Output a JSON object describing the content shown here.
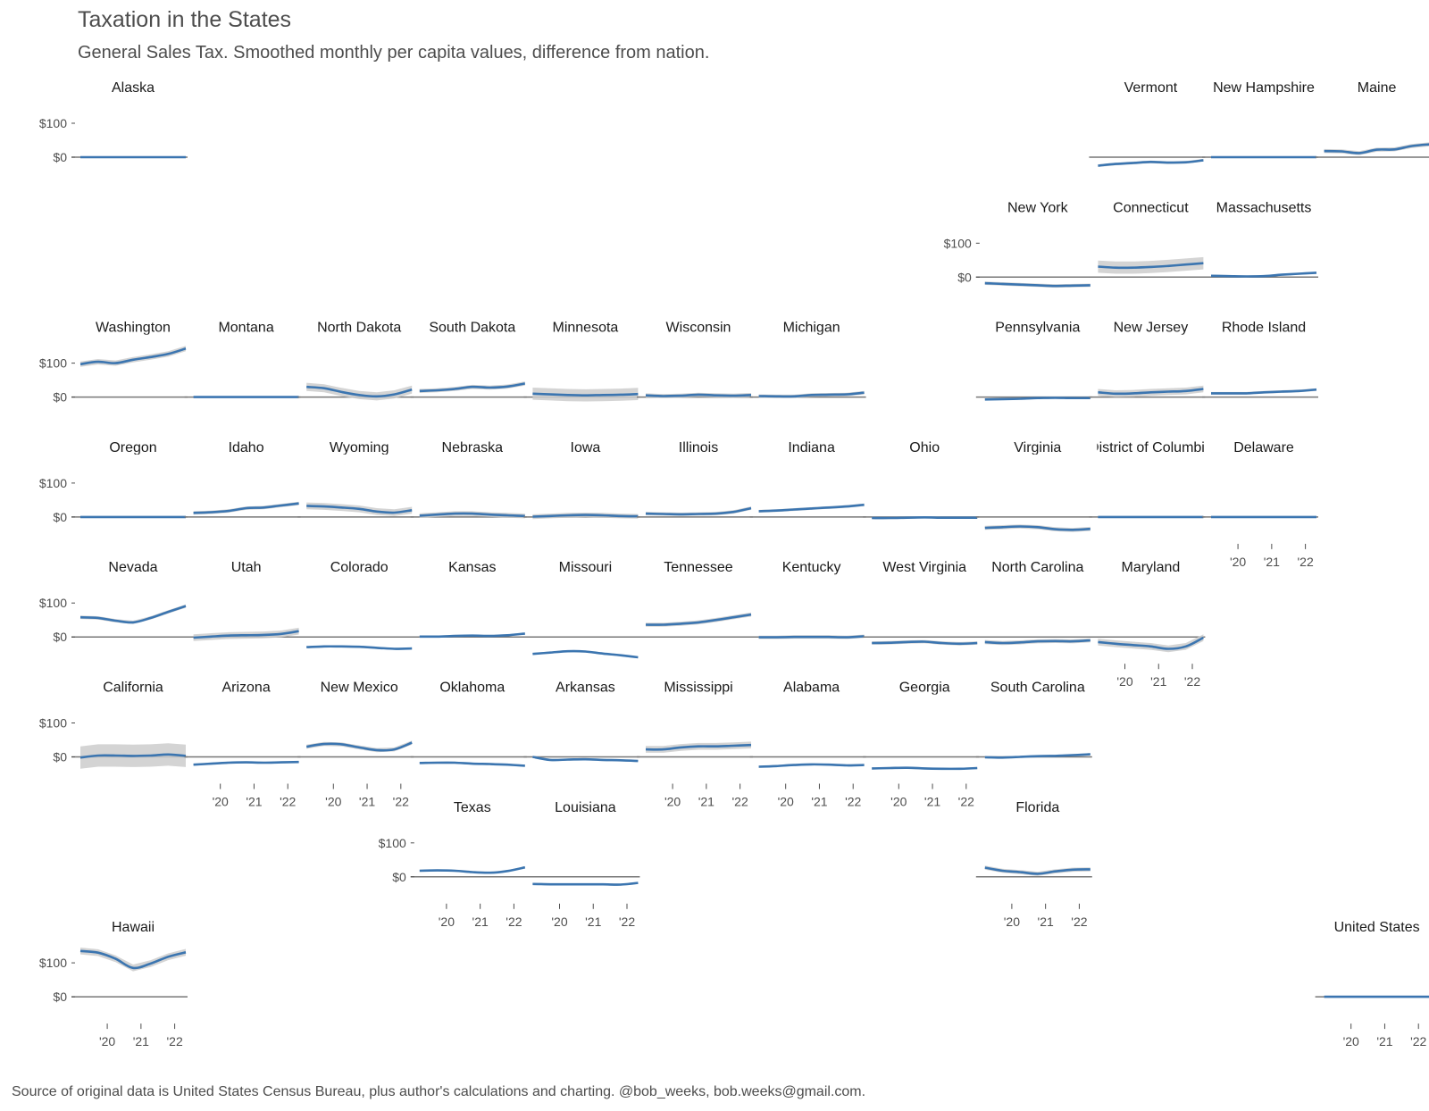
{
  "title": "Taxation in the States",
  "subtitle": "General Sales Tax. Smoothed monthly per capita values, difference from nation.",
  "caption": "Source of original data is United States Census Bureau, plus author's calculations and charting. @bob_weeks, bob.weeks@gmail.com.",
  "colors": {
    "line": "#3b75b0",
    "band": "#cccccc",
    "zero": "#777777",
    "text": "#4d4d4d"
  },
  "chart_data": {
    "type": "line",
    "layout": "state-grid facets",
    "x_ticks": [
      "'20",
      "'21",
      "'22"
    ],
    "y_ticks": [
      "$100",
      "$0"
    ],
    "x_unit": "year",
    "y_unit": "dollars per capita, difference from nation",
    "panels": [
      {
        "name": "Alaska",
        "row": 0,
        "col": 0,
        "values": [
          0,
          0,
          0,
          0,
          0,
          0,
          0
        ],
        "band": 0
      },
      {
        "name": "Vermont",
        "row": 0,
        "col": 9,
        "values": [
          -25,
          -20,
          -17,
          -14,
          -16,
          -15,
          -9
        ],
        "band": 4
      },
      {
        "name": "New Hampshire",
        "row": 0,
        "col": 10,
        "values": [
          0,
          0,
          0,
          0,
          0,
          0,
          0
        ],
        "band": 0
      },
      {
        "name": "Maine",
        "row": 0,
        "col": 11,
        "values": [
          18,
          17,
          12,
          22,
          23,
          33,
          38
        ],
        "band": 6
      },
      {
        "name": "New York",
        "row": 1,
        "col": 8,
        "values": [
          -18,
          -20,
          -22,
          -24,
          -26,
          -25,
          -24
        ],
        "band": 5
      },
      {
        "name": "Connecticut",
        "row": 1,
        "col": 9,
        "values": [
          31,
          28,
          28,
          30,
          33,
          37,
          41
        ],
        "band": 18
      },
      {
        "name": "Massachusetts",
        "row": 1,
        "col": 10,
        "values": [
          4,
          3,
          2,
          3,
          7,
          10,
          13
        ],
        "band": 3
      },
      {
        "name": "Washington",
        "row": 2,
        "col": 0,
        "values": [
          97,
          104,
          100,
          110,
          118,
          127,
          143
        ],
        "band": 8
      },
      {
        "name": "Montana",
        "row": 2,
        "col": 1,
        "values": [
          0,
          0,
          0,
          0,
          0,
          0,
          0
        ],
        "band": 0
      },
      {
        "name": "North Dakota",
        "row": 2,
        "col": 2,
        "values": [
          30,
          26,
          15,
          6,
          2,
          8,
          22
        ],
        "band": 12
      },
      {
        "name": "South Dakota",
        "row": 2,
        "col": 3,
        "values": [
          18,
          20,
          24,
          30,
          28,
          31,
          40
        ],
        "band": 6
      },
      {
        "name": "Minnesota",
        "row": 2,
        "col": 4,
        "values": [
          10,
          8,
          6,
          5,
          6,
          7,
          9
        ],
        "band": 18
      },
      {
        "name": "Wisconsin",
        "row": 2,
        "col": 5,
        "values": [
          5,
          3,
          4,
          7,
          5,
          4,
          6
        ],
        "band": 6
      },
      {
        "name": "Michigan",
        "row": 2,
        "col": 6,
        "values": [
          3,
          2,
          2,
          6,
          7,
          8,
          13
        ],
        "band": 5
      },
      {
        "name": "Pennsylvania",
        "row": 2,
        "col": 8,
        "values": [
          -7,
          -6,
          -5,
          -3,
          -2,
          -3,
          -3
        ],
        "band": 3
      },
      {
        "name": "New Jersey",
        "row": 2,
        "col": 9,
        "values": [
          14,
          10,
          11,
          14,
          16,
          18,
          24
        ],
        "band": 10
      },
      {
        "name": "Rhode Island",
        "row": 2,
        "col": 10,
        "values": [
          11,
          11,
          11,
          14,
          16,
          18,
          22
        ],
        "band": 4
      },
      {
        "name": "Oregon",
        "row": 3,
        "col": 0,
        "values": [
          0,
          0,
          0,
          0,
          0,
          0,
          0
        ],
        "band": 0
      },
      {
        "name": "Idaho",
        "row": 3,
        "col": 1,
        "values": [
          12,
          14,
          18,
          26,
          28,
          34,
          40
        ],
        "band": 5
      },
      {
        "name": "Wyoming",
        "row": 3,
        "col": 2,
        "values": [
          33,
          31,
          28,
          24,
          16,
          13,
          20
        ],
        "band": 10
      },
      {
        "name": "Nebraska",
        "row": 3,
        "col": 3,
        "values": [
          4,
          7,
          10,
          10,
          7,
          5,
          3
        ],
        "band": 7
      },
      {
        "name": "Iowa",
        "row": 3,
        "col": 4,
        "values": [
          1,
          3,
          5,
          6,
          5,
          3,
          2
        ],
        "band": 7
      },
      {
        "name": "Illinois",
        "row": 3,
        "col": 5,
        "values": [
          10,
          9,
          8,
          9,
          10,
          15,
          26
        ],
        "band": 5
      },
      {
        "name": "Indiana",
        "row": 3,
        "col": 6,
        "values": [
          17,
          19,
          22,
          25,
          28,
          31,
          36
        ],
        "band": 4
      },
      {
        "name": "Ohio",
        "row": 3,
        "col": 7,
        "values": [
          -3,
          -3,
          -2,
          -1,
          -2,
          -2,
          -2
        ],
        "band": 3
      },
      {
        "name": "Virginia",
        "row": 3,
        "col": 8,
        "values": [
          -32,
          -30,
          -28,
          -30,
          -36,
          -38,
          -35
        ],
        "band": 6
      },
      {
        "name": "District of Columbia",
        "row": 3,
        "col": 9,
        "values": [
          0,
          0,
          0,
          0,
          0,
          0,
          0
        ],
        "band": 0
      },
      {
        "name": "Delaware",
        "row": 3,
        "col": 10,
        "values": [
          0,
          0,
          0,
          0,
          0,
          0,
          0
        ],
        "band": 0
      },
      {
        "name": "Nevada",
        "row": 4,
        "col": 0,
        "values": [
          58,
          56,
          48,
          43,
          56,
          74,
          91
        ],
        "band": 5
      },
      {
        "name": "Utah",
        "row": 4,
        "col": 1,
        "values": [
          -2,
          1,
          4,
          5,
          6,
          9,
          17
        ],
        "band": 10
      },
      {
        "name": "Colorado",
        "row": 4,
        "col": 2,
        "values": [
          -30,
          -28,
          -28,
          -29,
          -32,
          -35,
          -34
        ],
        "band": 3
      },
      {
        "name": "Kansas",
        "row": 4,
        "col": 3,
        "values": [
          1,
          1,
          3,
          4,
          3,
          5,
          10
        ],
        "band": 3
      },
      {
        "name": "Missouri",
        "row": 4,
        "col": 4,
        "values": [
          -50,
          -46,
          -42,
          -43,
          -49,
          -54,
          -60
        ],
        "band": 3
      },
      {
        "name": "Tennessee",
        "row": 4,
        "col": 5,
        "values": [
          36,
          36,
          39,
          43,
          50,
          58,
          66
        ],
        "band": 6
      },
      {
        "name": "Kentucky",
        "row": 4,
        "col": 6,
        "values": [
          -1,
          -1,
          0,
          0,
          0,
          -1,
          2
        ],
        "band": 5
      },
      {
        "name": "West Virginia",
        "row": 4,
        "col": 7,
        "values": [
          -18,
          -17,
          -15,
          -14,
          -18,
          -20,
          -18
        ],
        "band": 5
      },
      {
        "name": "North Carolina",
        "row": 4,
        "col": 8,
        "values": [
          -15,
          -18,
          -16,
          -13,
          -12,
          -13,
          -10
        ],
        "band": 6
      },
      {
        "name": "Maryland",
        "row": 4,
        "col": 9,
        "values": [
          -15,
          -20,
          -24,
          -28,
          -35,
          -28,
          -2
        ],
        "band": 10
      },
      {
        "name": "California",
        "row": 5,
        "col": 0,
        "values": [
          -2,
          4,
          4,
          3,
          4,
          7,
          3
        ],
        "band": 33
      },
      {
        "name": "Arizona",
        "row": 5,
        "col": 1,
        "values": [
          -23,
          -20,
          -17,
          -16,
          -17,
          -16,
          -15
        ],
        "band": 3
      },
      {
        "name": "New Mexico",
        "row": 5,
        "col": 2,
        "values": [
          30,
          38,
          37,
          28,
          20,
          22,
          42
        ],
        "band": 6
      },
      {
        "name": "Oklahoma",
        "row": 5,
        "col": 3,
        "values": [
          -18,
          -17,
          -17,
          -20,
          -21,
          -23,
          -26
        ],
        "band": 3
      },
      {
        "name": "Arkansas",
        "row": 5,
        "col": 4,
        "values": [
          0,
          -9,
          -8,
          -7,
          -9,
          -10,
          -12
        ],
        "band": 3
      },
      {
        "name": "Mississippi",
        "row": 5,
        "col": 5,
        "values": [
          22,
          22,
          28,
          31,
          31,
          33,
          35
        ],
        "band": 10
      },
      {
        "name": "Alabama",
        "row": 5,
        "col": 6,
        "values": [
          -29,
          -27,
          -24,
          -22,
          -23,
          -25,
          -24
        ],
        "band": 3
      },
      {
        "name": "Georgia",
        "row": 5,
        "col": 7,
        "values": [
          -34,
          -33,
          -32,
          -34,
          -35,
          -35,
          -33
        ],
        "band": 3
      },
      {
        "name": "South Carolina",
        "row": 5,
        "col": 8,
        "values": [
          -1,
          -2,
          0,
          2,
          3,
          5,
          8
        ],
        "band": 3
      },
      {
        "name": "Texas",
        "row": 6,
        "col": 3,
        "values": [
          18,
          19,
          18,
          14,
          12,
          17,
          28
        ],
        "band": 3
      },
      {
        "name": "Louisiana",
        "row": 6,
        "col": 4,
        "values": [
          -21,
          -22,
          -22,
          -22,
          -22,
          -23,
          -18
        ],
        "band": 3
      },
      {
        "name": "Florida",
        "row": 6,
        "col": 8,
        "values": [
          27,
          18,
          14,
          9,
          16,
          21,
          22
        ],
        "band": 6
      },
      {
        "name": "Hawaii",
        "row": 7,
        "col": 0,
        "values": [
          135,
          130,
          112,
          85,
          98,
          118,
          131
        ],
        "band": 10
      },
      {
        "name": "United States",
        "row": 7,
        "col": 11,
        "values": [
          0,
          0,
          0,
          0,
          0,
          0,
          0
        ],
        "band": 0
      }
    ]
  }
}
